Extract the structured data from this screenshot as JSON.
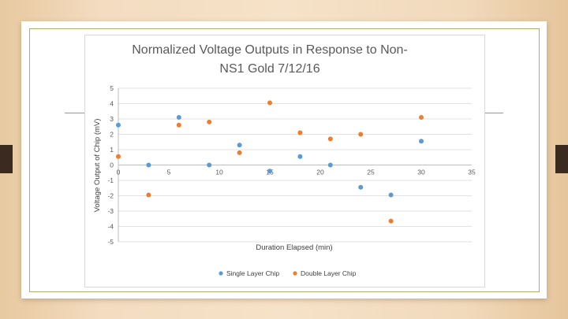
{
  "chart_data": {
    "type": "scatter",
    "title_line1": "Normalized Voltage Outputs in Response to Non-",
    "title_line2": "NS1 Gold 7/12/16",
    "xlabel": "Duration Elapsed (min)",
    "ylabel": "Voltage Output of Chip (mV)",
    "xlim": [
      0,
      35
    ],
    "ylim": [
      -5,
      5
    ],
    "x_ticks": [
      "0",
      "5",
      "10",
      "15",
      "20",
      "25",
      "30",
      "35"
    ],
    "y_ticks": [
      "5",
      "4",
      "3",
      "2",
      "1",
      "0",
      "-1",
      "-2",
      "-3",
      "-4",
      "-5"
    ],
    "grid": "horizontal",
    "legend_position": "bottom",
    "series": [
      {
        "name": "Single Layer Chip",
        "color": "#5b9bd5",
        "points": [
          {
            "x": 0,
            "y": 2.6
          },
          {
            "x": 3,
            "y": 0.0
          },
          {
            "x": 6,
            "y": 3.1
          },
          {
            "x": 9,
            "y": 0.0
          },
          {
            "x": 12,
            "y": 1.3
          },
          {
            "x": 15,
            "y": -0.4
          },
          {
            "x": 18,
            "y": 0.55
          },
          {
            "x": 21,
            "y": 0.0
          },
          {
            "x": 24,
            "y": -1.45
          },
          {
            "x": 27,
            "y": -1.95
          },
          {
            "x": 30,
            "y": 1.55
          }
        ]
      },
      {
        "name": "Double Layer Chip",
        "color": "#ed7d31",
        "points": [
          {
            "x": 0,
            "y": 0.55
          },
          {
            "x": 3,
            "y": -1.95
          },
          {
            "x": 6,
            "y": 2.6
          },
          {
            "x": 9,
            "y": 2.8
          },
          {
            "x": 12,
            "y": 0.8
          },
          {
            "x": 15,
            "y": 4.05
          },
          {
            "x": 18,
            "y": 2.1
          },
          {
            "x": 21,
            "y": 1.7
          },
          {
            "x": 24,
            "y": 2.0
          },
          {
            "x": 27,
            "y": -3.65
          },
          {
            "x": 30,
            "y": 3.1
          }
        ]
      }
    ]
  }
}
